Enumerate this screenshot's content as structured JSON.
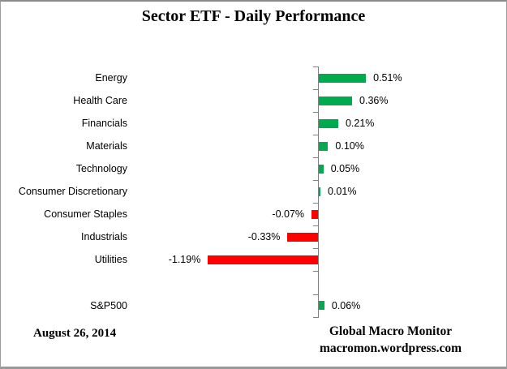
{
  "header": {
    "title": "Sector ETF - Daily Performance"
  },
  "chart_data": {
    "type": "bar",
    "orientation": "horizontal",
    "title": "Sector ETF - Daily Performance",
    "legend": "none",
    "gridlines": false,
    "value_axis_visible": false,
    "xlim": [
      -1.3,
      0.6
    ],
    "positive_color": "#00AB4E",
    "negative_color": "#FF0000",
    "axis_color": "#808080",
    "categories": [
      "Energy",
      "Health Care",
      "Financials",
      "Materials",
      "Technology",
      "Consumer Discretionary",
      "Consumer Staples",
      "Industrials",
      "Utilities",
      "",
      "S&P500"
    ],
    "values": [
      0.51,
      0.36,
      0.21,
      0.1,
      0.05,
      0.01,
      -0.07,
      -0.33,
      -1.19,
      null,
      0.06
    ],
    "rows": [
      {
        "category": "Energy",
        "value": 0.51,
        "label": "0.51%"
      },
      {
        "category": "Health Care",
        "value": 0.36,
        "label": "0.36%"
      },
      {
        "category": "Financials",
        "value": 0.21,
        "label": "0.21%"
      },
      {
        "category": "Materials",
        "value": 0.1,
        "label": "0.10%"
      },
      {
        "category": "Technology",
        "value": 0.05,
        "label": "0.05%"
      },
      {
        "category": "Consumer Discretionary",
        "value": 0.01,
        "label": "0.01%"
      },
      {
        "category": "Consumer Staples",
        "value": -0.07,
        "label": "-0.07%"
      },
      {
        "category": "Industrials",
        "value": -0.33,
        "label": "-0.33%"
      },
      {
        "category": "Utilities",
        "value": -1.19,
        "label": "-1.19%"
      },
      {
        "category": "",
        "value": null,
        "label": ""
      },
      {
        "category": "S&P500",
        "value": 0.06,
        "label": "0.06%"
      }
    ]
  },
  "footer": {
    "date": "August 26, 2014",
    "source_line1": "Global Macro Monitor",
    "source_line2": "macromon.wordpress.com"
  }
}
